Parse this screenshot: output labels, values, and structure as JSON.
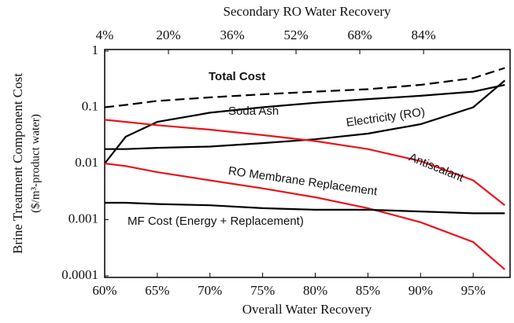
{
  "chart_data": {
    "type": "line",
    "xlabel": "Overall Water Recovery",
    "x2label": "Secondary RO Water Recovery",
    "ylabel": [
      "Brine Treatment Component Cost",
      "($/m³-product water)"
    ],
    "x": [
      60,
      62,
      65,
      70,
      75,
      80,
      85,
      90,
      95,
      98
    ],
    "xlim": [
      60,
      98.5
    ],
    "xticks": [
      {
        "value": 60,
        "label": "60%"
      },
      {
        "value": 65,
        "label": "65%"
      },
      {
        "value": 70,
        "label": "70%"
      },
      {
        "value": 75,
        "label": "75%"
      },
      {
        "value": 80,
        "label": "80%"
      },
      {
        "value": 85,
        "label": "85%"
      },
      {
        "value": 90,
        "label": "90%"
      },
      {
        "value": 95,
        "label": "95%"
      }
    ],
    "x2lim": [
      4,
      105.7
    ],
    "x2ticks": [
      {
        "value": 4,
        "label": "4%"
      },
      {
        "value": 20,
        "label": "20%"
      },
      {
        "value": 36,
        "label": "36%"
      },
      {
        "value": 52,
        "label": "52%"
      },
      {
        "value": 68,
        "label": "68%"
      },
      {
        "value": 84,
        "label": "84%"
      }
    ],
    "ylim": [
      0.0001,
      1
    ],
    "yticks": [
      0.0001,
      0.001,
      0.01,
      0.1,
      1
    ],
    "log_y": true,
    "series": [
      {
        "name": "Total Cost",
        "color": "#000000",
        "dashed": true,
        "values": [
          0.1,
          0.11,
          0.13,
          0.15,
          0.17,
          0.19,
          0.21,
          0.25,
          0.33,
          0.5
        ]
      },
      {
        "name": "Soda Ash",
        "color": "#000000",
        "values": [
          0.01,
          0.03,
          0.055,
          0.08,
          0.1,
          0.12,
          0.14,
          0.16,
          0.19,
          0.25
        ]
      },
      {
        "name": "Electricity (RO)",
        "color": "#000000",
        "values": [
          0.018,
          0.018,
          0.019,
          0.02,
          0.023,
          0.027,
          0.034,
          0.05,
          0.1,
          0.3
        ]
      },
      {
        "name": "Antiscalant",
        "color": "#e8141c",
        "values": [
          0.06,
          0.055,
          0.048,
          0.04,
          0.032,
          0.025,
          0.018,
          0.011,
          0.005,
          0.0018
        ]
      },
      {
        "name": "RO Membrane Replacement",
        "color": "#e8141c",
        "values": [
          0.01,
          0.009,
          0.007,
          0.005,
          0.0036,
          0.0025,
          0.0016,
          0.0009,
          0.0004,
          0.00013
        ]
      },
      {
        "name": "MF Cost (Energy + Replacement)",
        "color": "#000000",
        "values": [
          0.002,
          0.002,
          0.0019,
          0.0018,
          0.0016,
          0.0015,
          0.0015,
          0.0014,
          0.0013,
          0.0013
        ]
      }
    ]
  }
}
